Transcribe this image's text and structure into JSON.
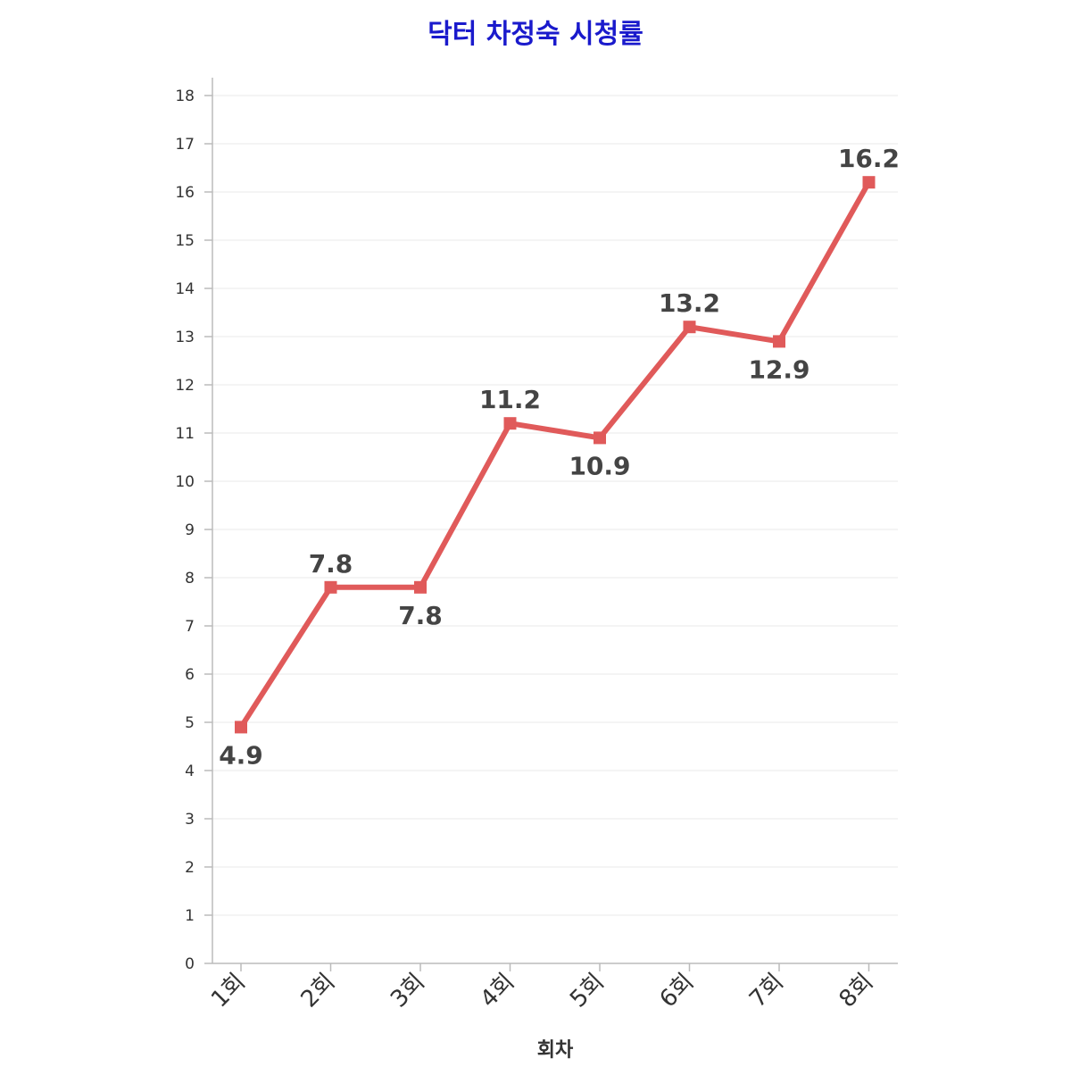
{
  "chart_data": {
    "type": "line",
    "title": "닥터 차정숙 시청률",
    "xlabel": "회차",
    "ylabel": "",
    "categories": [
      "1회",
      "2회",
      "3회",
      "4회",
      "5회",
      "6회",
      "7회",
      "8회"
    ],
    "series": [
      {
        "values": [
          4.9,
          7.8,
          7.8,
          11.2,
          10.9,
          13.2,
          12.9,
          16.2
        ]
      }
    ],
    "data_labels": [
      "4.9",
      "7.8",
      "7.8",
      "11.2",
      "10.9",
      "13.2",
      "12.9",
      "16.2"
    ],
    "ylim": [
      0,
      18
    ],
    "yticks": [
      0,
      1,
      2,
      3,
      4,
      5,
      6,
      7,
      8,
      9,
      10,
      11,
      12,
      13,
      14,
      15,
      16,
      17,
      18
    ],
    "grid": true,
    "colors": {
      "line": "#e05a5a",
      "title": "#1a1acc",
      "grid": "#e8e8e8",
      "axis": "#bbbbbb"
    }
  }
}
